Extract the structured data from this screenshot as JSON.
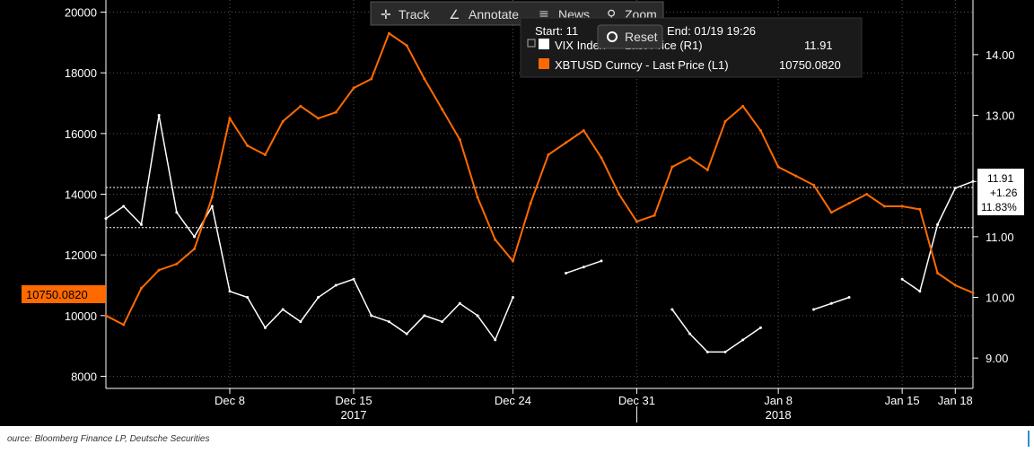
{
  "toolbar": {
    "track_label": "Track",
    "annotate_label": "Annotate",
    "news_label": "News",
    "zoom_label": "Zoom",
    "reset_label": "Reset"
  },
  "legend": {
    "start_label": "Start: 11",
    "end_label": "End: 01/19 19:26",
    "vix_label": "VIX Index",
    "vix_suffix": "- Last Price (R1)",
    "vix_value": "11.91",
    "btc_label": "XBTUSD Curncy - Last Price (L1)",
    "btc_value": "10750.0820"
  },
  "left_axis": {
    "ticks": [
      "8000",
      "10000",
      "12000",
      "14000",
      "16000",
      "18000",
      "20000"
    ]
  },
  "right_axis": {
    "ticks": [
      "9.00",
      "10.00",
      "11.00",
      "13.00",
      "14.00"
    ]
  },
  "x_axis": {
    "ticks": [
      "Dec 8",
      "Dec 15",
      "Dec 24",
      "Dec 31",
      "Jan 8",
      "Jan 15",
      "Jan 18"
    ],
    "years": [
      "2017",
      "2018"
    ]
  },
  "badges": {
    "btc_last": "10750.0820",
    "vix_last": "11.91",
    "vix_change": "+1.26",
    "vix_change_pct": "11.83%"
  },
  "source": "ource: Bloomberg Finance LP, Deutsche Securities",
  "colors": {
    "background": "#000000",
    "btc": "#ff6a00",
    "vix": "#ffffff",
    "grid": "#666666"
  },
  "chart_data": {
    "type": "line",
    "x_dates": [
      "Dec 1",
      "Dec 8",
      "Dec 15",
      "Dec 24",
      "Dec 31",
      "Jan 8",
      "Jan 15",
      "Jan 18"
    ],
    "ylim_left": [
      7600,
      20400
    ],
    "ylim_right": [
      8.5,
      14.9
    ],
    "series": [
      {
        "name": "XBTUSD Curncy - Last Price (L1)",
        "axis": "left",
        "x": [
          "Dec 1",
          "Dec 2",
          "Dec 3",
          "Dec 4",
          "Dec 5",
          "Dec 6",
          "Dec 7",
          "Dec 8",
          "Dec 9",
          "Dec 10",
          "Dec 11",
          "Dec 12",
          "Dec 13",
          "Dec 14",
          "Dec 15",
          "Dec 16",
          "Dec 17",
          "Dec 18",
          "Dec 19",
          "Dec 20",
          "Dec 21",
          "Dec 22",
          "Dec 23",
          "Dec 24",
          "Dec 25",
          "Dec 26",
          "Dec 27",
          "Dec 28",
          "Dec 29",
          "Dec 30",
          "Dec 31",
          "Jan 1",
          "Jan 2",
          "Jan 3",
          "Jan 4",
          "Jan 5",
          "Jan 6",
          "Jan 7",
          "Jan 8",
          "Jan 9",
          "Jan 10",
          "Jan 11",
          "Jan 12",
          "Jan 13",
          "Jan 14",
          "Jan 15",
          "Jan 16",
          "Jan 17",
          "Jan 18",
          "Jan 19"
        ],
        "values": [
          10000,
          9700,
          10900,
          11500,
          11700,
          12200,
          13900,
          16500,
          15600,
          15300,
          16400,
          16900,
          16500,
          16700,
          17500,
          17800,
          19300,
          18900,
          17800,
          16800,
          15800,
          13900,
          12500,
          11800,
          13700,
          15300,
          15700,
          16100,
          15200,
          14000,
          13100,
          13300,
          14900,
          15200,
          14800,
          16400,
          16900,
          16100,
          14900,
          14600,
          14300,
          13400,
          13700,
          14000,
          13600,
          13600,
          13500,
          11400,
          11000,
          10750
        ]
      },
      {
        "name": "VIX Index - Last Price (R1)",
        "axis": "right",
        "x": [
          "Dec 1",
          "Dec 2",
          "Dec 3",
          "Dec 4",
          "Dec 5",
          "Dec 6",
          "Dec 7",
          "Dec 8",
          "Dec 9",
          "Dec 10",
          "Dec 11",
          "Dec 12",
          "Dec 13",
          "Dec 14",
          "Dec 15",
          "Dec 16",
          "Dec 17",
          "Dec 18",
          "Dec 19",
          "Dec 20",
          "Dec 21",
          "Dec 22",
          "Dec 23",
          "Dec 24",
          "Dec 25",
          "Dec 26",
          "Dec 27",
          "Dec 28",
          "Dec 29",
          "Dec 30",
          "Dec 31",
          "Jan 1",
          "Jan 2",
          "Jan 3",
          "Jan 4",
          "Jan 5",
          "Jan 6",
          "Jan 7",
          "Jan 8",
          "Jan 9",
          "Jan 10",
          "Jan 11",
          "Jan 12",
          "Jan 13",
          "Jan 14",
          "Jan 15",
          "Jan 16",
          "Jan 17",
          "Jan 18",
          "Jan 19"
        ],
        "values": [
          11.3,
          11.5,
          11.2,
          13.0,
          11.4,
          11.0,
          11.5,
          10.1,
          10.0,
          9.5,
          9.8,
          9.6,
          10.0,
          10.2,
          10.3,
          9.7,
          9.6,
          9.4,
          9.7,
          9.6,
          9.9,
          9.7,
          9.3,
          10.0,
          null,
          null,
          10.4,
          10.5,
          10.6,
          null,
          null,
          null,
          9.8,
          9.4,
          9.1,
          9.1,
          9.3,
          9.5,
          null,
          null,
          9.8,
          9.9,
          10.0,
          null,
          null,
          10.3,
          10.1,
          11.2,
          11.8,
          11.91
        ]
      }
    ]
  }
}
